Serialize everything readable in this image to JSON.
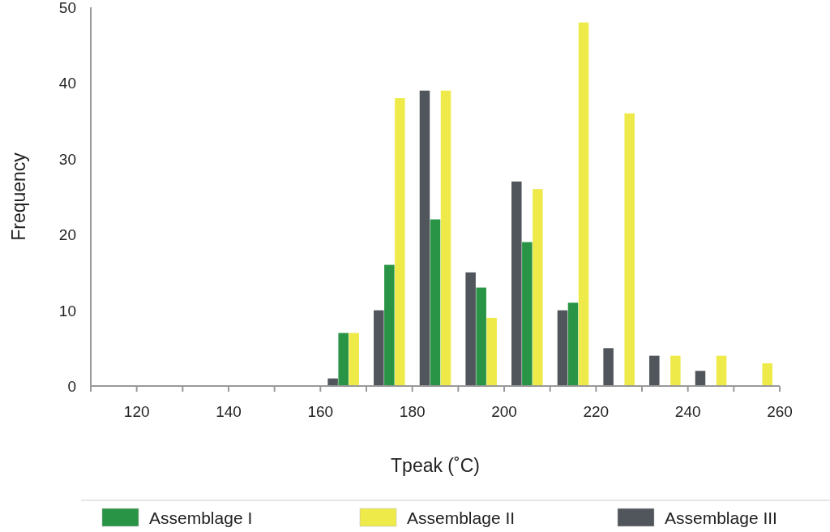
{
  "chart_data": {
    "type": "bar",
    "xlabel": "Tpeak (˚C)",
    "ylabel": "Frequency",
    "x": [
      165,
      175,
      185,
      195,
      205,
      215,
      225,
      235,
      245,
      255
    ],
    "series": [
      {
        "name": "Assemblage I",
        "color": "#2a9446",
        "values": [
          7,
          16,
          22,
          13,
          19,
          11,
          0,
          0,
          0,
          0
        ]
      },
      {
        "name": "Assemblage II",
        "color": "#eeea4a",
        "values": [
          7,
          38,
          39,
          9,
          26,
          48,
          36,
          4,
          4,
          3
        ]
      },
      {
        "name": "Assemblage III",
        "color": "#50565c",
        "values": [
          1,
          10,
          39,
          15,
          27,
          10,
          5,
          4,
          2,
          0
        ]
      }
    ],
    "xlim": [
      110,
      260
    ],
    "xticks": [
      {
        "value": 110,
        "label": null
      },
      120,
      {
        "value": 130,
        "label": null
      },
      140,
      {
        "value": 150,
        "label": null
      },
      160,
      {
        "value": 170,
        "label": null
      },
      180,
      {
        "value": 190,
        "label": null
      },
      200,
      {
        "value": 210,
        "label": null
      },
      220,
      {
        "value": 230,
        "label": null
      },
      240,
      {
        "value": 250,
        "label": null
      },
      260
    ],
    "ylim": [
      0,
      50
    ],
    "yticks": [
      0,
      10,
      20,
      30,
      40,
      50
    ],
    "grid": false,
    "legend": "bottom"
  }
}
